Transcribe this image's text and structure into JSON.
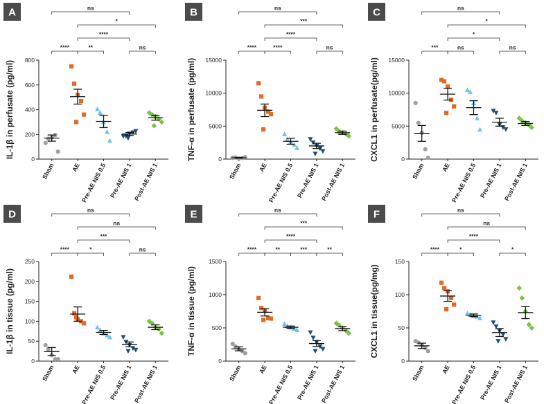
{
  "colors": {
    "Sham": "#a0a0a0",
    "AE": "#e06b25",
    "Pre-AE NIS 0.5": "#6ec3ea",
    "Pre-AE NIS 1": "#1f4e79",
    "Post-AE NIS 1": "#7cc242"
  },
  "chart_data": [
    {
      "type": "scatter",
      "panel": "A",
      "ylabel": "IL-1β in perfusate (pg/ml)",
      "categories": [
        "Sham",
        "AE",
        "Pre-AE NIS 0.5",
        "Pre-AE NIS 1",
        "Post-AE NIS 1"
      ],
      "ylim": [
        0,
        800
      ],
      "yticks": [
        0,
        200,
        400,
        600,
        800
      ],
      "points": [
        [
          130,
          165,
          175,
          195,
          60
        ],
        [
          750,
          610,
          520,
          470,
          360,
          300
        ],
        [
          405,
          375,
          300,
          220,
          150
        ],
        [
          185,
          185,
          205,
          215,
          225,
          170
        ],
        [
          375,
          360,
          345,
          325,
          300,
          270
        ]
      ],
      "mean": [
        170,
        505,
        305,
        203,
        335
      ],
      "sem": [
        25,
        60,
        50,
        12,
        20
      ],
      "comparisons": [
        {
          "from": 0,
          "to": 3,
          "label": "ns"
        },
        {
          "from": 1,
          "to": 4,
          "label": "*"
        },
        {
          "from": 1,
          "to": 3,
          "label": "****"
        },
        {
          "from": 0,
          "to": 1,
          "label": "****"
        },
        {
          "from": 1,
          "to": 2,
          "label": "**"
        },
        {
          "from": 3,
          "to": 4,
          "label": "ns"
        }
      ]
    },
    {
      "type": "scatter",
      "panel": "B",
      "ylabel": "TNF-α in perfusate (pg/ml)",
      "categories": [
        "Sham",
        "AE",
        "Pre-AE NIS 0.5",
        "Pre-AE NIS 1",
        "Post-AE NIS 1"
      ],
      "ylim": [
        0,
        15000
      ],
      "yticks": [
        0,
        5000,
        10000,
        15000
      ],
      "points": [
        [
          200,
          250,
          100,
          150,
          300
        ],
        [
          11500,
          9500,
          7800,
          7200,
          6800,
          4500
        ],
        [
          3800,
          3000,
          2600,
          2200,
          1700
        ],
        [
          3000,
          2500,
          2000,
          1600,
          1200,
          800
        ],
        [
          4600,
          4200,
          4000,
          3800,
          3500
        ]
      ],
      "mean": [
        200,
        7400,
        2700,
        2000,
        4000
      ],
      "sem": [
        60,
        950,
        450,
        400,
        250
      ],
      "comparisons": [
        {
          "from": 0,
          "to": 3,
          "label": "ns"
        },
        {
          "from": 1,
          "to": 4,
          "label": "***"
        },
        {
          "from": 1,
          "to": 3,
          "label": "****"
        },
        {
          "from": 0,
          "to": 1,
          "label": "****"
        },
        {
          "from": 1,
          "to": 2,
          "label": "****"
        },
        {
          "from": 3,
          "to": 4,
          "label": "ns"
        }
      ]
    },
    {
      "type": "scatter",
      "panel": "C",
      "ylabel": "CXCL1 in perfusate(pg/ml)",
      "categories": [
        "Sham",
        "AE",
        "Pre-AE NIS 0.5",
        "Pre-AE NIS 1",
        "Post-AE NIS 1"
      ],
      "ylim": [
        0,
        15000
      ],
      "yticks": [
        0,
        5000,
        10000,
        15000
      ],
      "points": [
        [
          8500,
          5500,
          4000,
          1500,
          200
        ],
        [
          12000,
          11800,
          11000,
          9000,
          8000,
          7000
        ],
        [
          10500,
          10200,
          8500,
          6200,
          4500
        ],
        [
          7300,
          7000,
          5200,
          4800,
          4500
        ],
        [
          6200,
          5800,
          5500,
          5200,
          4800
        ]
      ],
      "mean": [
        3900,
        9850,
        7800,
        5600,
        5400
      ],
      "sem": [
        1200,
        900,
        1050,
        600,
        300
      ],
      "comparisons": [
        {
          "from": 0,
          "to": 3,
          "label": "ns"
        },
        {
          "from": 1,
          "to": 4,
          "label": "*"
        },
        {
          "from": 1,
          "to": 3,
          "label": "*"
        },
        {
          "from": 0,
          "to": 1,
          "label": "***"
        },
        {
          "from": 1,
          "to": 2,
          "label": "ns"
        },
        {
          "from": 3,
          "to": 4,
          "label": "ns"
        }
      ]
    },
    {
      "type": "scatter",
      "panel": "D",
      "ylabel": "IL-1β in tissue (pg/ml)",
      "categories": [
        "Sham",
        "AE",
        "Pre-AE NIS 0.5",
        "Pre-AE NIS 1",
        "Post-AE NIS 1"
      ],
      "ylim": [
        0,
        250
      ],
      "yticks": [
        0,
        50,
        100,
        150,
        200,
        250
      ],
      "points": [
        [
          40,
          30,
          15,
          5,
          5
        ],
        [
          212,
          120,
          105,
          100,
          95,
          110
        ],
        [
          85,
          78,
          70,
          65,
          60
        ],
        [
          60,
          48,
          40,
          32,
          28,
          25
        ],
        [
          100,
          95,
          85,
          80,
          70
        ]
      ],
      "mean": [
        24,
        118,
        72,
        42,
        85
      ],
      "sem": [
        10,
        18,
        5,
        6,
        6
      ],
      "comparisons": [
        {
          "from": 0,
          "to": 3,
          "label": "ns"
        },
        {
          "from": 1,
          "to": 4,
          "label": "ns"
        },
        {
          "from": 1,
          "to": 3,
          "label": "***"
        },
        {
          "from": 0,
          "to": 1,
          "label": "****"
        },
        {
          "from": 1,
          "to": 2,
          "label": "*"
        },
        {
          "from": 3,
          "to": 4,
          "label": "ns"
        }
      ]
    },
    {
      "type": "scatter",
      "panel": "E",
      "ylabel": "TNF-α in tissue (pg/ml)",
      "categories": [
        "Sham",
        "AE",
        "Pre-AE NIS 0.5",
        "Pre-AE NIS 1",
        "Post-AE NIS 1"
      ],
      "ylim": [
        0,
        1500
      ],
      "yticks": [
        0,
        500,
        1000,
        1500
      ],
      "points": [
        [
          260,
          220,
          180,
          150,
          120
        ],
        [
          950,
          800,
          760,
          650,
          640,
          620
        ],
        [
          560,
          530,
          510,
          490,
          470
        ],
        [
          430,
          350,
          280,
          220,
          180,
          150
        ],
        [
          570,
          540,
          500,
          460,
          420
        ]
      ],
      "mean": [
        185,
        735,
        510,
        265,
        490
      ],
      "sem": [
        30,
        55,
        18,
        45,
        30
      ],
      "comparisons": [
        {
          "from": 0,
          "to": 3,
          "label": "ns"
        },
        {
          "from": 1,
          "to": 4,
          "label": "***"
        },
        {
          "from": 1,
          "to": 3,
          "label": "****"
        },
        {
          "from": 0,
          "to": 1,
          "label": "****"
        },
        {
          "from": 1,
          "to": 2,
          "label": "**"
        },
        {
          "from": 2,
          "to": 3,
          "label": "***"
        },
        {
          "from": 3,
          "to": 4,
          "label": "**"
        }
      ]
    },
    {
      "type": "scatter",
      "panel": "F",
      "ylabel": "CXCL1 in tissue(pg/mg)",
      "categories": [
        "Sham",
        "AE",
        "Pre-AE NIS 0.5",
        "Pre-AE NIS 1",
        "Post-AE NIS 1"
      ],
      "ylim": [
        0,
        150
      ],
      "yticks": [
        0,
        50,
        100,
        150
      ],
      "points": [
        [
          30,
          28,
          24,
          20,
          15
        ],
        [
          118,
          110,
          105,
          95,
          85,
          78
        ],
        [
          72,
          70,
          68,
          67,
          65
        ],
        [
          58,
          52,
          45,
          40,
          33,
          30
        ],
        [
          110,
          95,
          75,
          55,
          50
        ]
      ],
      "mean": [
        23,
        98,
        69,
        43,
        73
      ],
      "sem": [
        4,
        8,
        2,
        6,
        9
      ],
      "comparisons": [
        {
          "from": 0,
          "to": 3,
          "label": "ns"
        },
        {
          "from": 1,
          "to": 4,
          "label": "ns"
        },
        {
          "from": 1,
          "to": 3,
          "label": "****"
        },
        {
          "from": 0,
          "to": 1,
          "label": "****"
        },
        {
          "from": 1,
          "to": 2,
          "label": "*"
        },
        {
          "from": 3,
          "to": 4,
          "label": "*"
        }
      ]
    }
  ]
}
